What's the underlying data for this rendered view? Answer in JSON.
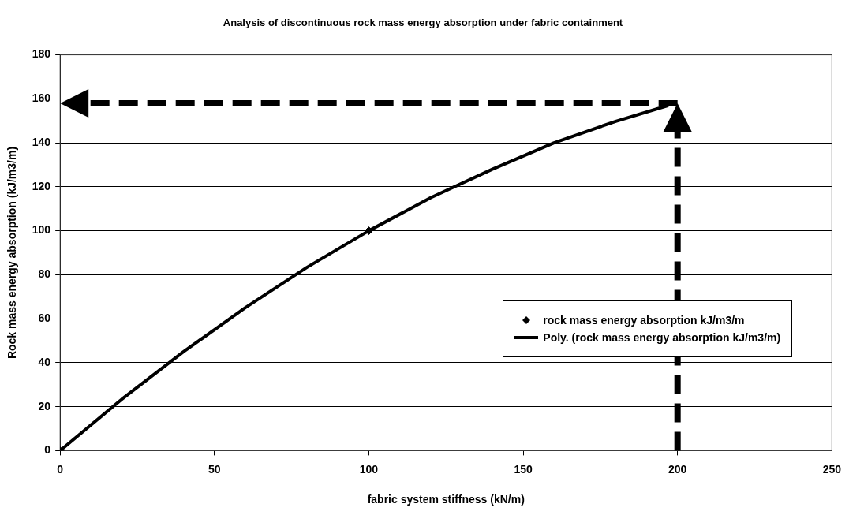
{
  "chart_data": {
    "type": "scatter",
    "title": "Analysis of discontinuous rock mass energy absorption under fabric containment",
    "xlabel": "fabric system stiffness (kN/m)",
    "ylabel": "Rock mass energy absorption (kJ/m3/m)",
    "series": [
      {
        "name": "rock mass energy absorption kJ/m3/m",
        "color": "#000000",
        "marker": "diamond",
        "x": [
          0,
          100
        ],
        "values": [
          0,
          100
        ]
      },
      {
        "name": "Poly. (rock mass energy absorption kJ/m3/m)",
        "type": "line",
        "color": "#000000",
        "marker": "none",
        "line_style": "solid",
        "x": [
          0,
          20,
          40,
          60,
          80,
          100,
          120,
          140,
          160,
          180,
          197
        ],
        "values": [
          0,
          23.4,
          45,
          65,
          83.4,
          100,
          115,
          128,
          140,
          149.8,
          157
        ]
      }
    ],
    "xlim": [
      0,
      250
    ],
    "xticks": [
      0,
      50,
      100,
      150,
      200,
      250
    ],
    "ylim": [
      0,
      180
    ],
    "yticks": [
      0,
      20,
      40,
      60,
      80,
      100,
      120,
      140,
      160,
      180
    ],
    "grid": "y",
    "legend": "right",
    "ref_lines": [
      {
        "axis": "y",
        "value": 158,
        "line_style": "dashed",
        "color": "#000000"
      },
      {
        "axis": "x",
        "value": 200,
        "line_style": "dashed",
        "color": "#000000"
      }
    ]
  }
}
